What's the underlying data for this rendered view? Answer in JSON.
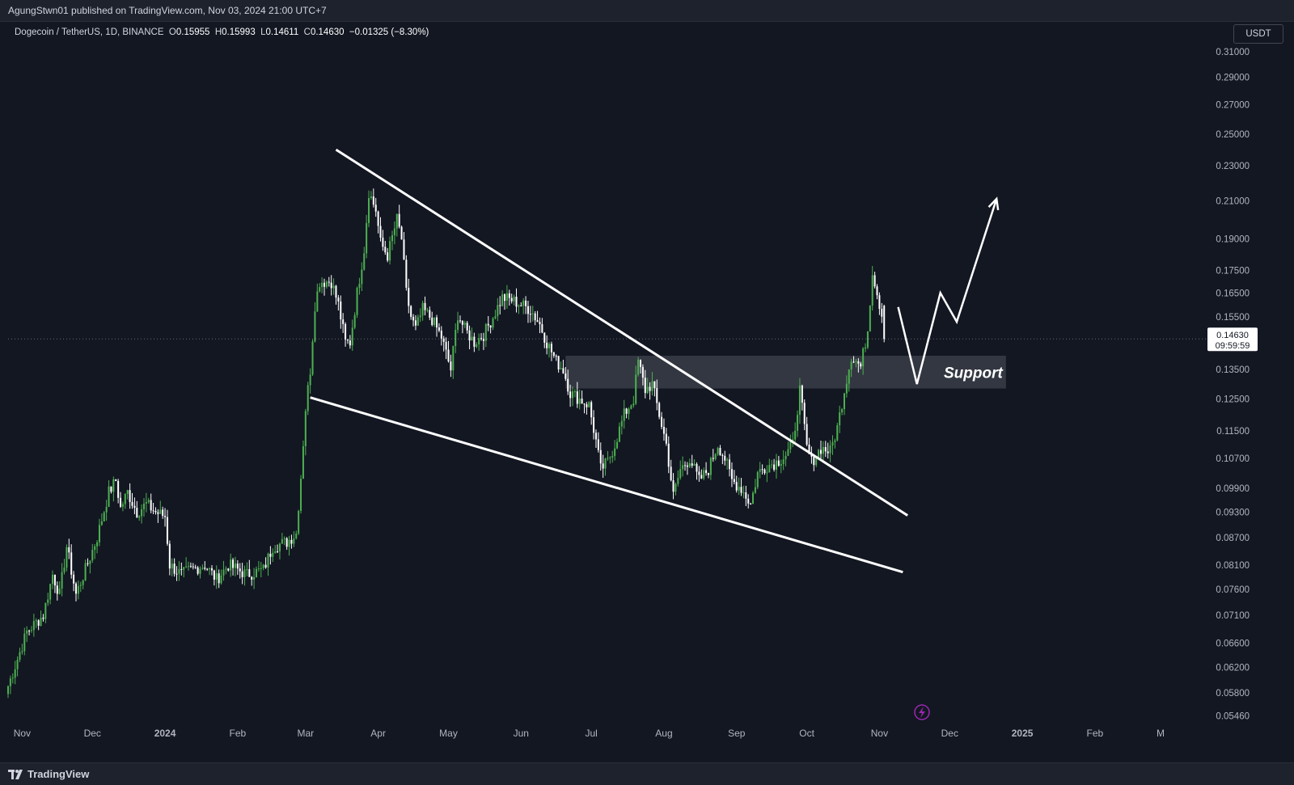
{
  "header": {
    "publish_info": "AgungStwn01 published on TradingView.com, Nov 03, 2024 21:00 UTC+7"
  },
  "symbol_info": {
    "name": "Dogecoin / TetherUS, 1D, BINANCE",
    "open_label": "O",
    "open": "0.15955",
    "high_label": "H",
    "high": "0.15993",
    "low_label": "L",
    "low": "0.14611",
    "close_label": "C",
    "close": "0.14630",
    "change": "−0.01325 (−8.30%)"
  },
  "currency": "USDT",
  "footer": {
    "brand": "TradingView"
  },
  "colors": {
    "background": "#131722",
    "up": "#4caf50",
    "down": "#ffffff",
    "annotation": "#ffffff",
    "support_zone": "#3a3d47",
    "axis_text": "#b2b5be"
  },
  "chart_data": {
    "type": "candlestick",
    "title": "Dogecoin / TetherUS, 1D, BINANCE",
    "y_scale": "log",
    "ylim": [
      0.0535,
      0.318
    ],
    "xlim": [
      "2023-10-26",
      "2025-03-20"
    ],
    "y_ticks": [
      "0.31000",
      "0.29000",
      "0.27000",
      "0.25000",
      "0.23000",
      "0.21000",
      "0.19000",
      "0.17500",
      "0.16500",
      "0.15500",
      "0.13500",
      "0.12500",
      "0.11500",
      "0.10700",
      "0.09900",
      "0.09300",
      "0.08700",
      "0.08100",
      "0.07600",
      "0.07100",
      "0.06600",
      "0.06200",
      "0.05800",
      "0.05460"
    ],
    "x_ticks": [
      {
        "label": "Nov",
        "date": "2023-11-01",
        "bold": false
      },
      {
        "label": "Dec",
        "date": "2023-12-01",
        "bold": false
      },
      {
        "label": "2024",
        "date": "2024-01-01",
        "bold": true
      },
      {
        "label": "Feb",
        "date": "2024-02-01",
        "bold": false
      },
      {
        "label": "Mar",
        "date": "2024-03-01",
        "bold": false
      },
      {
        "label": "Apr",
        "date": "2024-04-01",
        "bold": false
      },
      {
        "label": "May",
        "date": "2024-05-01",
        "bold": false
      },
      {
        "label": "Jun",
        "date": "2024-06-01",
        "bold": false
      },
      {
        "label": "Jul",
        "date": "2024-07-01",
        "bold": false
      },
      {
        "label": "Aug",
        "date": "2024-08-01",
        "bold": false
      },
      {
        "label": "Sep",
        "date": "2024-09-01",
        "bold": false
      },
      {
        "label": "Oct",
        "date": "2024-10-01",
        "bold": false
      },
      {
        "label": "Nov",
        "date": "2024-11-01",
        "bold": false
      },
      {
        "label": "Dec",
        "date": "2024-12-01",
        "bold": false
      },
      {
        "label": "2025",
        "date": "2025-01-01",
        "bold": true
      },
      {
        "label": "Feb",
        "date": "2025-02-01",
        "bold": false
      },
      {
        "label": "M",
        "date": "2025-03-01",
        "bold": false
      }
    ],
    "price_path": [
      [
        "2023-10-26",
        0.059
      ],
      [
        "2023-11-03",
        0.068
      ],
      [
        "2023-11-10",
        0.071
      ],
      [
        "2023-11-14",
        0.079
      ],
      [
        "2023-11-17",
        0.075
      ],
      [
        "2023-11-20",
        0.085
      ],
      [
        "2023-11-24",
        0.075
      ],
      [
        "2023-11-28",
        0.08
      ],
      [
        "2023-12-03",
        0.087
      ],
      [
        "2023-12-08",
        0.098
      ],
      [
        "2023-12-11",
        0.101
      ],
      [
        "2023-12-13",
        0.094
      ],
      [
        "2023-12-16",
        0.098
      ],
      [
        "2023-12-20",
        0.093
      ],
      [
        "2023-12-24",
        0.095
      ],
      [
        "2023-12-28",
        0.093
      ],
      [
        "2024-01-01",
        0.092
      ],
      [
        "2024-01-03",
        0.081
      ],
      [
        "2024-01-08",
        0.079
      ],
      [
        "2024-01-12",
        0.08
      ],
      [
        "2024-01-18",
        0.081
      ],
      [
        "2024-01-23",
        0.078
      ],
      [
        "2024-01-28",
        0.081
      ],
      [
        "2024-02-01",
        0.08
      ],
      [
        "2024-02-05",
        0.079
      ],
      [
        "2024-02-12",
        0.08
      ],
      [
        "2024-02-16",
        0.085
      ],
      [
        "2024-02-22",
        0.086
      ],
      [
        "2024-02-26",
        0.088
      ],
      [
        "2024-02-28",
        0.102
      ],
      [
        "2024-03-01",
        0.122
      ],
      [
        "2024-03-03",
        0.135
      ],
      [
        "2024-03-05",
        0.16
      ],
      [
        "2024-03-07",
        0.17
      ],
      [
        "2024-03-12",
        0.17
      ],
      [
        "2024-03-15",
        0.16
      ],
      [
        "2024-03-18",
        0.145
      ],
      [
        "2024-03-20",
        0.145
      ],
      [
        "2024-03-23",
        0.165
      ],
      [
        "2024-03-26",
        0.185
      ],
      [
        "2024-03-28",
        0.215
      ],
      [
        "2024-03-31",
        0.205
      ],
      [
        "2024-04-02",
        0.188
      ],
      [
        "2024-04-05",
        0.182
      ],
      [
        "2024-04-09",
        0.2
      ],
      [
        "2024-04-11",
        0.19
      ],
      [
        "2024-04-13",
        0.165
      ],
      [
        "2024-04-15",
        0.155
      ],
      [
        "2024-04-17",
        0.15
      ],
      [
        "2024-04-20",
        0.158
      ],
      [
        "2024-04-24",
        0.154
      ],
      [
        "2024-04-28",
        0.147
      ],
      [
        "2024-05-02",
        0.135
      ],
      [
        "2024-05-05",
        0.156
      ],
      [
        "2024-05-08",
        0.15
      ],
      [
        "2024-05-12",
        0.145
      ],
      [
        "2024-05-16",
        0.148
      ],
      [
        "2024-05-20",
        0.155
      ],
      [
        "2024-05-24",
        0.163
      ],
      [
        "2024-05-28",
        0.162
      ],
      [
        "2024-06-01",
        0.16
      ],
      [
        "2024-06-05",
        0.158
      ],
      [
        "2024-06-09",
        0.152
      ],
      [
        "2024-06-12",
        0.145
      ],
      [
        "2024-06-16",
        0.138
      ],
      [
        "2024-06-19",
        0.135
      ],
      [
        "2024-06-22",
        0.127
      ],
      [
        "2024-06-26",
        0.125
      ],
      [
        "2024-06-30",
        0.123
      ],
      [
        "2024-07-03",
        0.112
      ],
      [
        "2024-07-05",
        0.104
      ],
      [
        "2024-07-08",
        0.106
      ],
      [
        "2024-07-11",
        0.111
      ],
      [
        "2024-07-15",
        0.12
      ],
      [
        "2024-07-19",
        0.125
      ],
      [
        "2024-07-21",
        0.138
      ],
      [
        "2024-07-24",
        0.128
      ],
      [
        "2024-07-27",
        0.13
      ],
      [
        "2024-07-30",
        0.12
      ],
      [
        "2024-08-02",
        0.111
      ],
      [
        "2024-08-05",
        0.097
      ],
      [
        "2024-08-08",
        0.104
      ],
      [
        "2024-08-12",
        0.107
      ],
      [
        "2024-08-16",
        0.101
      ],
      [
        "2024-08-20",
        0.104
      ],
      [
        "2024-08-24",
        0.111
      ],
      [
        "2024-08-27",
        0.107
      ],
      [
        "2024-08-30",
        0.101
      ],
      [
        "2024-09-03",
        0.099
      ],
      [
        "2024-09-07",
        0.095
      ],
      [
        "2024-09-10",
        0.103
      ],
      [
        "2024-09-14",
        0.105
      ],
      [
        "2024-09-18",
        0.106
      ],
      [
        "2024-09-22",
        0.108
      ],
      [
        "2024-09-25",
        0.111
      ],
      [
        "2024-09-28",
        0.128
      ],
      [
        "2024-10-01",
        0.11
      ],
      [
        "2024-10-03",
        0.106
      ],
      [
        "2024-10-07",
        0.11
      ],
      [
        "2024-10-11",
        0.109
      ],
      [
        "2024-10-14",
        0.116
      ],
      [
        "2024-10-17",
        0.128
      ],
      [
        "2024-10-20",
        0.14
      ],
      [
        "2024-10-24",
        0.136
      ],
      [
        "2024-10-27",
        0.15
      ],
      [
        "2024-10-29",
        0.175
      ],
      [
        "2024-10-31",
        0.165
      ],
      [
        "2024-11-02",
        0.156
      ],
      [
        "2024-11-03",
        0.1463
      ]
    ],
    "annotations": {
      "falling_wedge_upper": [
        [
          "2024-03-14",
          0.24
        ],
        [
          "2024-11-13",
          0.0922
        ]
      ],
      "falling_wedge_lower": [
        [
          "2024-03-03",
          0.1255
        ],
        [
          "2024-11-11",
          0.0795
        ]
      ],
      "projection": [
        [
          "2024-11-09",
          0.159
        ],
        [
          "2024-11-17",
          0.13
        ],
        [
          "2024-11-27",
          0.165
        ],
        [
          "2024-12-04",
          0.153
        ],
        [
          "2024-12-21",
          0.211
        ]
      ],
      "support_zone": {
        "from": "2024-06-20",
        "to": "2024-12-25",
        "top": 0.14,
        "bottom": 0.1285,
        "label": "Support"
      }
    },
    "last_price": {
      "value": "0.14630",
      "countdown": "09:59:59"
    }
  }
}
